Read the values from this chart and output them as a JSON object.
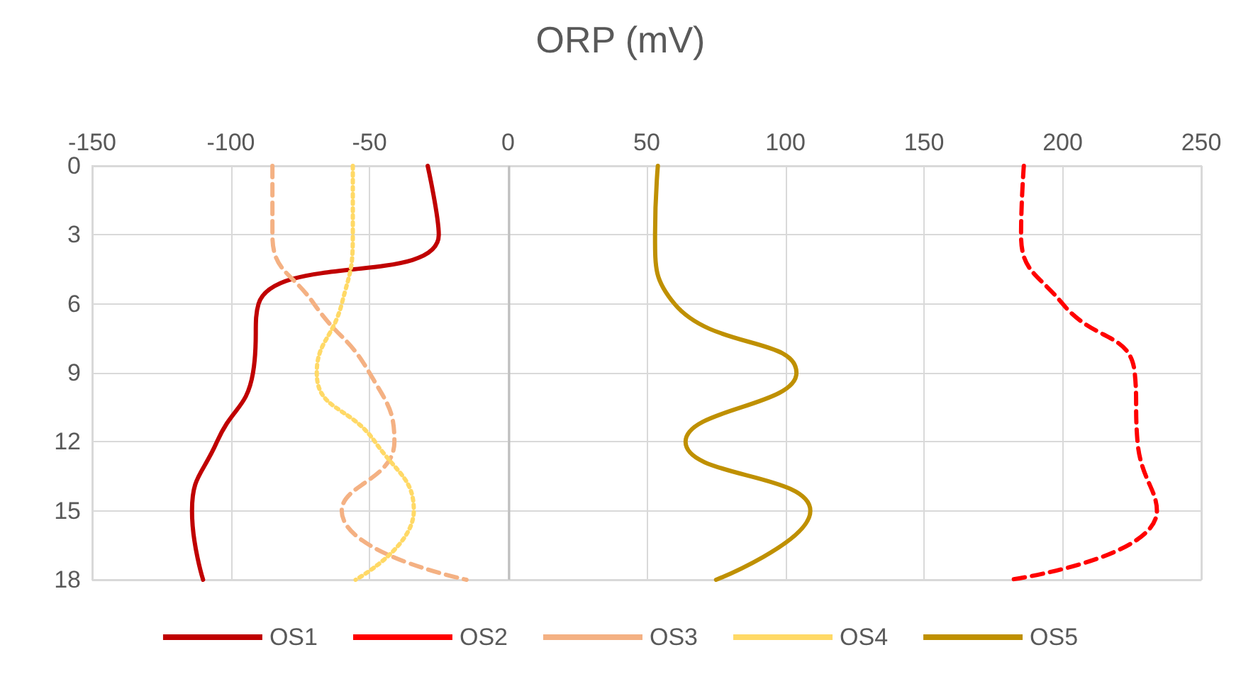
{
  "chart_data": {
    "type": "line",
    "title": "ORP (mV)",
    "xlim": [
      -150,
      250
    ],
    "xticks": [
      -150,
      -100,
      -50,
      0,
      50,
      100,
      150,
      200,
      250
    ],
    "ylim": [
      18,
      0
    ],
    "yticks": [
      0,
      3,
      6,
      9,
      12,
      15,
      18
    ],
    "grid": true,
    "legend": "bottom",
    "marker": "none",
    "series": [
      {
        "name": "OS1",
        "color": "#c00000",
        "line_style": "solid",
        "x": [
          -29,
          -25,
          -90,
          -92,
          -105,
          -114,
          -110
        ],
        "values": [
          0,
          3,
          6,
          9,
          12,
          15,
          18
        ]
      },
      {
        "name": "OS2",
        "color": "#ff0000",
        "line_style": "dashed",
        "x": [
          186,
          185,
          200,
          226,
          227,
          234,
          181
        ],
        "values": [
          0,
          3,
          6,
          9,
          12,
          15,
          18
        ]
      },
      {
        "name": "OS3",
        "color": "#f4b183",
        "line_style": "dashed",
        "x": [
          -85,
          -85,
          -70,
          -50,
          -41,
          -60,
          -15
        ],
        "values": [
          0,
          3,
          6,
          9,
          12,
          15,
          18
        ]
      },
      {
        "name": "OS4",
        "color": "#ffd966",
        "line_style": "dotted",
        "x": [
          -56,
          -56,
          -60,
          -69,
          -48,
          -34,
          -55
        ],
        "values": [
          0,
          3,
          6,
          9,
          12,
          15,
          18
        ]
      },
      {
        "name": "OS5",
        "color": "#bf9000",
        "line_style": "solid",
        "x": [
          54,
          53,
          60,
          104,
          64,
          109,
          75
        ],
        "values": [
          0,
          3,
          6,
          9,
          12,
          15,
          18
        ]
      }
    ]
  }
}
